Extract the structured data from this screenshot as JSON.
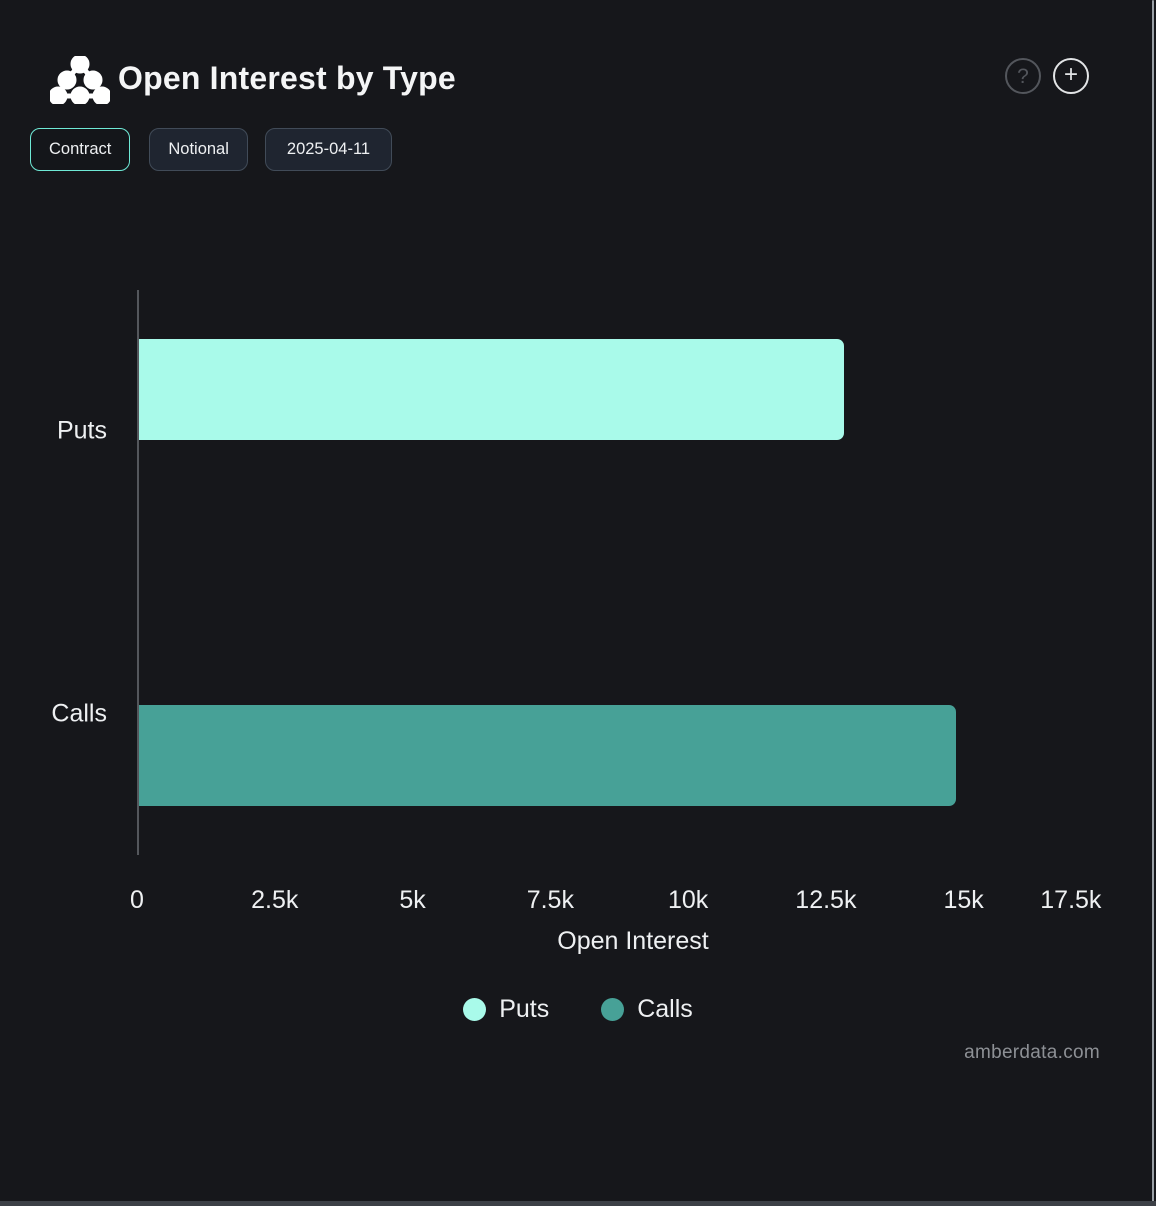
{
  "header": {
    "title": "Open Interest by Type",
    "help_icon": "?",
    "add_icon": "+"
  },
  "toolbar": {
    "buttons": [
      {
        "label": "Contract",
        "active": true
      },
      {
        "label": "Notional",
        "active": false
      },
      {
        "label": "2025-04-11",
        "active": false
      }
    ]
  },
  "watermark": "amberdata.com",
  "colors": {
    "background": "#16171b",
    "puts": "#a9faea",
    "calls": "#47a197",
    "accent_border": "#6fe9d6",
    "axis_line": "#54575c",
    "text": "#eef0f2"
  },
  "chart_data": {
    "type": "bar",
    "orientation": "horizontal",
    "title": "Open Interest by Type",
    "categories": [
      "Puts",
      "Calls"
    ],
    "series": [
      {
        "name": "Puts",
        "color": "#a9faea",
        "values": [
          12800,
          null
        ]
      },
      {
        "name": "Calls",
        "color": "#47a197",
        "values": [
          null,
          14830
        ]
      }
    ],
    "xlabel": "Open Interest",
    "xlim": [
      0,
      18000
    ],
    "xticks": [
      0,
      2500,
      5000,
      7500,
      10000,
      12500,
      15000,
      17500
    ],
    "xtick_labels": [
      "0",
      "2.5k",
      "5k",
      "7.5k",
      "10k",
      "12.5k",
      "15k",
      "17.5k"
    ],
    "grid": false,
    "legend": {
      "position": "bottom",
      "items": [
        "Puts",
        "Calls"
      ]
    }
  }
}
